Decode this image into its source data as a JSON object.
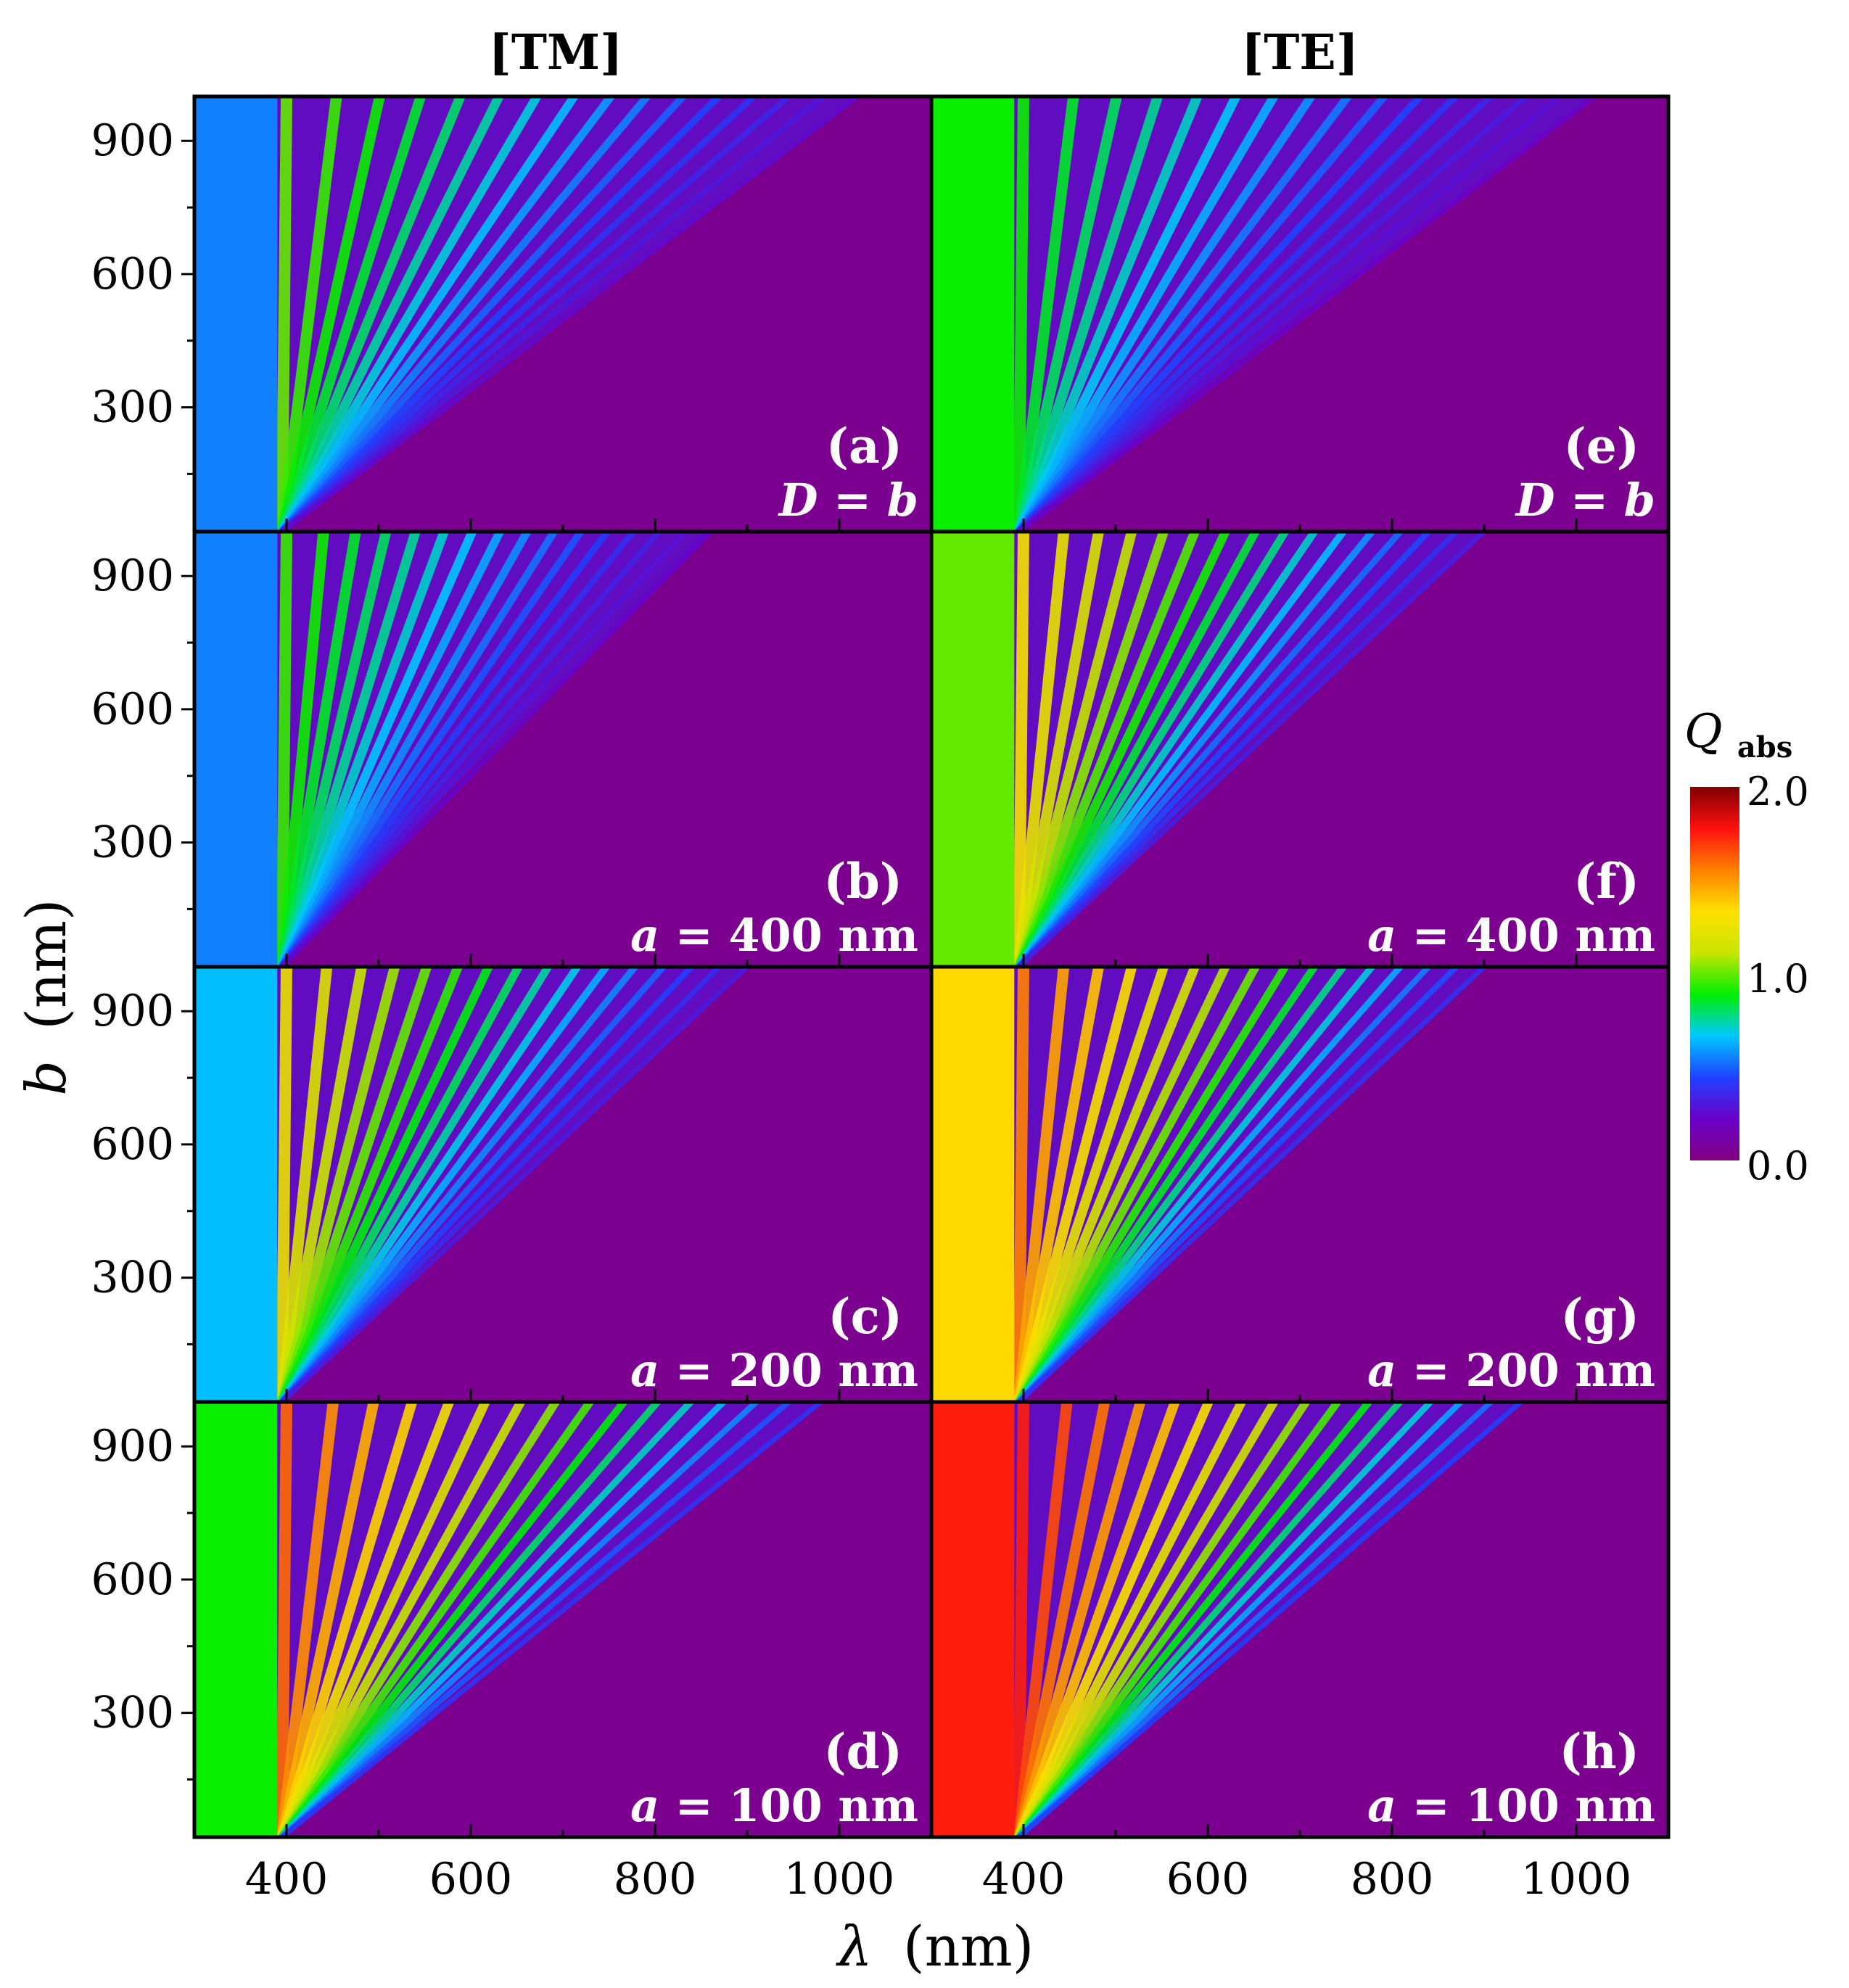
{
  "figure": {
    "col_titles": [
      "[TM]",
      "[TE]"
    ],
    "xlabel_symbol": "λ",
    "xlabel_unit": "(nm)",
    "ylabel_symbol": "b",
    "ylabel_unit": "(nm)"
  },
  "colorbar": {
    "label_main": "Q",
    "label_sub": "abs",
    "ticks": [
      "2.0",
      "1.0",
      "0.0"
    ],
    "range": [
      0.0,
      2.0
    ],
    "colors": [
      "#800080",
      "#6a00c8",
      "#2040ff",
      "#00c8ff",
      "#00ee00",
      "#c8e600",
      "#ffe000",
      "#ff8000",
      "#ff1010",
      "#800000"
    ]
  },
  "chart_data": [
    {
      "type": "heatmap",
      "panel": "(a)",
      "polarization": "TM",
      "condition_var": "D",
      "condition_value": "b",
      "xlabel": "λ (nm)",
      "ylabel": "b (nm)",
      "xlim": [
        300,
        1100
      ],
      "ylim": [
        20,
        1000
      ],
      "xticks": [
        "400",
        "600",
        "800",
        "1000"
      ],
      "yticks": [
        "900",
        "600",
        "300"
      ],
      "z_label": "Qabs",
      "z_range": [
        0.0,
        2.0
      ],
      "base_level": 0.55,
      "mode_level": 1.0,
      "mode_spread": 0.9
    },
    {
      "type": "heatmap",
      "panel": "(b)",
      "polarization": "TM",
      "condition_var": "a",
      "condition_value": "400 nm",
      "xlabel": "λ (nm)",
      "ylabel": "b (nm)",
      "xlim": [
        300,
        1100
      ],
      "ylim": [
        20,
        1000
      ],
      "xticks": [
        "400",
        "600",
        "800",
        "1000"
      ],
      "yticks": [
        "900",
        "600",
        "300"
      ],
      "z_label": "Qabs",
      "z_range": [
        0.0,
        2.0
      ],
      "base_level": 0.55,
      "mode_level": 0.95,
      "mode_spread": 0.7
    },
    {
      "type": "heatmap",
      "panel": "(c)",
      "polarization": "TM",
      "condition_var": "a",
      "condition_value": "200 nm",
      "xlabel": "λ (nm)",
      "ylabel": "b (nm)",
      "xlim": [
        300,
        1100
      ],
      "ylim": [
        20,
        1000
      ],
      "xticks": [
        "400",
        "600",
        "800",
        "1000"
      ],
      "yticks": [
        "900",
        "600",
        "300"
      ],
      "z_label": "Qabs",
      "z_range": [
        0.0,
        2.0
      ],
      "base_level": 0.65,
      "mode_level": 1.25,
      "mode_spread": 0.75
    },
    {
      "type": "heatmap",
      "panel": "(d)",
      "polarization": "TM",
      "condition_var": "a",
      "condition_value": "100 nm",
      "xlabel": "λ (nm)",
      "ylabel": "b (nm)",
      "xlim": [
        300,
        1100
      ],
      "ylim": [
        20,
        1000
      ],
      "xticks": [
        "400",
        "600",
        "800",
        "1000"
      ],
      "yticks": [
        "900",
        "600",
        "300"
      ],
      "z_label": "Qabs",
      "z_range": [
        0.0,
        2.0
      ],
      "base_level": 0.9,
      "mode_level": 1.6,
      "mode_spread": 0.85
    },
    {
      "type": "heatmap",
      "panel": "(e)",
      "polarization": "TE",
      "condition_var": "D",
      "condition_value": "b",
      "xlabel": "λ (nm)",
      "ylabel": "b (nm)",
      "xlim": [
        300,
        1100
      ],
      "ylim": [
        20,
        1000
      ],
      "xticks": [
        "400",
        "600",
        "800",
        "1000"
      ],
      "yticks": [
        "900",
        "600",
        "300"
      ],
      "z_label": "Qabs",
      "z_range": [
        0.0,
        2.0
      ],
      "base_level": 0.9,
      "mode_level": 0.9,
      "mode_spread": 0.9
    },
    {
      "type": "heatmap",
      "panel": "(f)",
      "polarization": "TE",
      "condition_var": "a",
      "condition_value": "400 nm",
      "xlabel": "λ (nm)",
      "ylabel": "b (nm)",
      "xlim": [
        300,
        1100
      ],
      "ylim": [
        20,
        1000
      ],
      "xticks": [
        "400",
        "600",
        "800",
        "1000"
      ],
      "yticks": [
        "900",
        "600",
        "300"
      ],
      "z_label": "Qabs",
      "z_range": [
        0.0,
        2.0
      ],
      "base_level": 1.0,
      "mode_level": 1.3,
      "mode_spread": 0.75
    },
    {
      "type": "heatmap",
      "panel": "(g)",
      "polarization": "TE",
      "condition_var": "a",
      "condition_value": "200 nm",
      "xlabel": "λ (nm)",
      "ylabel": "b (nm)",
      "xlim": [
        300,
        1100
      ],
      "ylim": [
        20,
        1000
      ],
      "xticks": [
        "400",
        "600",
        "800",
        "1000"
      ],
      "yticks": [
        "900",
        "600",
        "300"
      ],
      "z_label": "Qabs",
      "z_range": [
        0.0,
        2.0
      ],
      "base_level": 1.35,
      "mode_level": 1.55,
      "mode_spread": 0.75
    },
    {
      "type": "heatmap",
      "panel": "(h)",
      "polarization": "TE",
      "condition_var": "a",
      "condition_value": "100 nm",
      "xlabel": "λ (nm)",
      "ylabel": "b (nm)",
      "xlim": [
        300,
        1100
      ],
      "ylim": [
        20,
        1000
      ],
      "xticks": [
        "400",
        "600",
        "800",
        "1000"
      ],
      "yticks": [
        "900",
        "600",
        "300"
      ],
      "z_label": "Qabs",
      "z_range": [
        0.0,
        2.0
      ],
      "base_level": 1.75,
      "mode_level": 1.75,
      "mode_spread": 0.8
    }
  ]
}
